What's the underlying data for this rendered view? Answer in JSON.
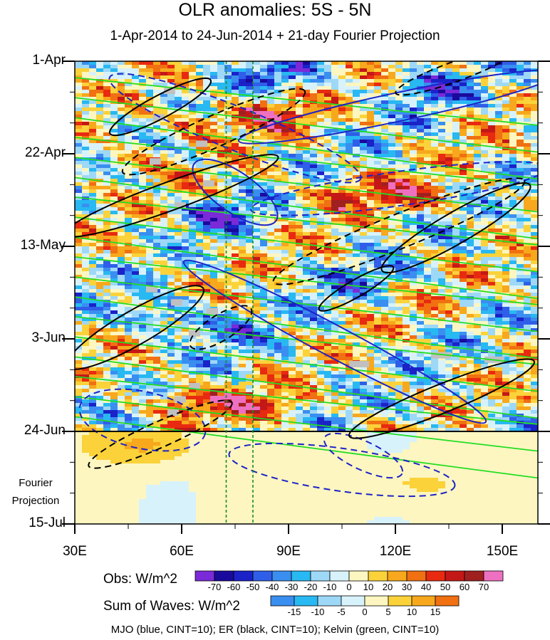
{
  "chart_data": {
    "type": "heatmap",
    "title": "OLR anomalies: 5S - 5N",
    "subtitle": "1-Apr-2014 to 24-Jun-2014 + 21-day Fourier Projection",
    "x_ticks": [
      "30E",
      "60E",
      "90E",
      "120E",
      "150E"
    ],
    "x_tick_values": [
      30,
      60,
      90,
      120,
      150
    ],
    "xlim": [
      30,
      160
    ],
    "y_ticks": [
      "1-Apr",
      "22-Apr",
      "13-May",
      "3-Jun",
      "24-Jun",
      "15-Jul"
    ],
    "y_tick_dates": [
      "2014-04-01",
      "2014-04-22",
      "2014-05-13",
      "2014-06-03",
      "2014-06-24",
      "2014-07-15"
    ],
    "ylim": [
      "2014-04-01",
      "2014-07-15"
    ],
    "projection_start": "2014-06-24",
    "projection_label": [
      "Fourier",
      "Projection"
    ],
    "vertical_lines_lon": [
      72.5,
      80
    ],
    "obs_colorbar": {
      "label": "Obs: W/m^2",
      "levels": [
        -70,
        -60,
        -50,
        -40,
        -30,
        -20,
        -10,
        0,
        10,
        20,
        30,
        40,
        50,
        60,
        70
      ],
      "colors": [
        "#7a2ad8",
        "#1a0a9c",
        "#1a22c8",
        "#2f5ee8",
        "#3a8ef0",
        "#28b8f2",
        "#9ed8f7",
        "#d8f2fb",
        "#fdf6c0",
        "#fbd23a",
        "#f7a81c",
        "#f07012",
        "#e82a10",
        "#c41818",
        "#a02020",
        "#ee70c0"
      ]
    },
    "waves_colorbar": {
      "label": "Sum of Waves: W/m^2",
      "levels": [
        -15,
        -10,
        -5,
        0,
        5,
        10,
        15
      ],
      "colors": [
        "#3a8ef0",
        "#28b8f2",
        "#9ed8f7",
        "#d8f2fb",
        "#fdf6c0",
        "#fbd23a",
        "#f7a81c",
        "#f07012"
      ]
    },
    "field_samples": [
      {
        "lon": 65,
        "date": "2014-04-15",
        "olr": 40
      },
      {
        "lon": 85,
        "date": "2014-04-13",
        "olr": 50
      },
      {
        "lon": 88,
        "date": "2014-04-04",
        "olr": -40
      },
      {
        "lon": 130,
        "date": "2014-04-07",
        "olr": -40
      },
      {
        "lon": 45,
        "date": "2014-04-24",
        "olr": 30
      },
      {
        "lon": 125,
        "date": "2014-05-01",
        "olr": 40
      },
      {
        "lon": 105,
        "date": "2014-05-01",
        "olr": 30
      },
      {
        "lon": 70,
        "date": "2014-05-06",
        "olr": -50
      },
      {
        "lon": 55,
        "date": "2014-05-29",
        "olr": -50
      },
      {
        "lon": 110,
        "date": "2014-05-21",
        "olr": -30
      },
      {
        "lon": 75,
        "date": "2014-06-01",
        "olr": -30
      },
      {
        "lon": 62,
        "date": "2014-06-17",
        "olr": 50
      },
      {
        "lon": 82,
        "date": "2014-06-18",
        "olr": 40
      },
      {
        "lon": 125,
        "date": "2014-07-06",
        "olr": 10
      },
      {
        "lon": 50,
        "date": "2014-06-27",
        "olr": 20
      }
    ],
    "series": [
      {
        "name": "MJO",
        "color": "#1c22c8",
        "cint": 10
      },
      {
        "name": "ER",
        "color": "#000000",
        "cint": 10
      },
      {
        "name": "Kelvin",
        "color": "#22dd22",
        "cint": 10
      }
    ],
    "footer": "MJO (blue, CINT=10); ER (black, CINT=10); Kelvin (green, CINT=10)"
  }
}
